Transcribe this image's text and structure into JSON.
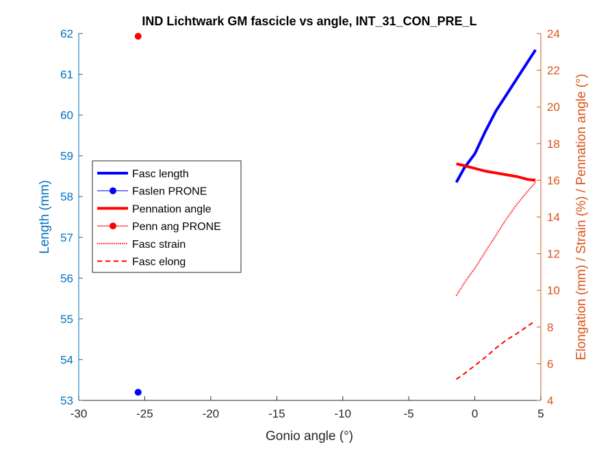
{
  "chart_data": {
    "type": "line",
    "title": "IND Lichtwark GM fascicle vs angle, INT_31_CON_PRE_L",
    "xlabel": "Gonio angle (°)",
    "ylabel_left": "Length (mm)",
    "ylabel_right": "Elongation (mm) / Strain (%) / Pennation angle (°)",
    "xlim": [
      -30,
      5
    ],
    "ylim_left": [
      53,
      62
    ],
    "ylim_right": [
      4,
      24
    ],
    "x_ticks": [
      "-30",
      "-25",
      "-20",
      "-15",
      "-10",
      "-5",
      "0",
      "5"
    ],
    "y_left_ticks": [
      "53",
      "54",
      "55",
      "56",
      "57",
      "58",
      "59",
      "60",
      "61",
      "62"
    ],
    "y_right_ticks": [
      "4",
      "6",
      "8",
      "10",
      "12",
      "14",
      "16",
      "18",
      "20",
      "22",
      "24"
    ],
    "grid": false,
    "legend_position": "middle-left",
    "colors": {
      "left_axis": "#0072BD",
      "right_axis": "#D95319",
      "fasc_length": "#0000FF",
      "pennation": "#FF0000"
    },
    "series": [
      {
        "name": "Fasc length",
        "axis": "left",
        "style": "thick-solid",
        "color": "#0000FF",
        "x": [
          -1.4,
          -0.8,
          0.0,
          0.8,
          1.6,
          2.4,
          3.2,
          4.0,
          4.6
        ],
        "y": [
          58.35,
          58.7,
          59.05,
          59.6,
          60.1,
          60.5,
          60.9,
          61.3,
          61.6
        ]
      },
      {
        "name": "Faslen PRONE",
        "axis": "left",
        "style": "marker",
        "color": "#0000FF",
        "x": [
          -25.5
        ],
        "y": [
          53.2
        ]
      },
      {
        "name": "Pennation angle",
        "axis": "right",
        "style": "thick-solid",
        "color": "#FF0000",
        "x": [
          -1.4,
          -0.8,
          0.0,
          0.8,
          1.6,
          2.4,
          3.2,
          4.0,
          4.6
        ],
        "y": [
          16.9,
          16.8,
          16.65,
          16.5,
          16.4,
          16.3,
          16.2,
          16.05,
          16.0
        ]
      },
      {
        "name": "Penn ang PRONE",
        "axis": "right",
        "style": "marker",
        "color": "#FF0000",
        "x": [
          -25.5
        ],
        "y": [
          23.85
        ]
      },
      {
        "name": "Fasc strain",
        "axis": "right",
        "style": "dotted",
        "color": "#FF0000",
        "x": [
          -1.4,
          -0.8,
          0.0,
          0.8,
          1.6,
          2.4,
          3.2,
          4.0,
          4.6
        ],
        "y": [
          9.7,
          10.4,
          11.2,
          12.1,
          13.0,
          13.9,
          14.7,
          15.4,
          15.9
        ]
      },
      {
        "name": "Fasc elong",
        "axis": "right",
        "style": "dashed",
        "color": "#FF0000",
        "x": [
          -1.4,
          -0.8,
          0.0,
          0.8,
          1.6,
          2.4,
          3.2,
          4.0,
          4.6
        ],
        "y": [
          5.15,
          5.45,
          5.9,
          6.35,
          6.85,
          7.3,
          7.65,
          8.05,
          8.35
        ]
      }
    ]
  }
}
